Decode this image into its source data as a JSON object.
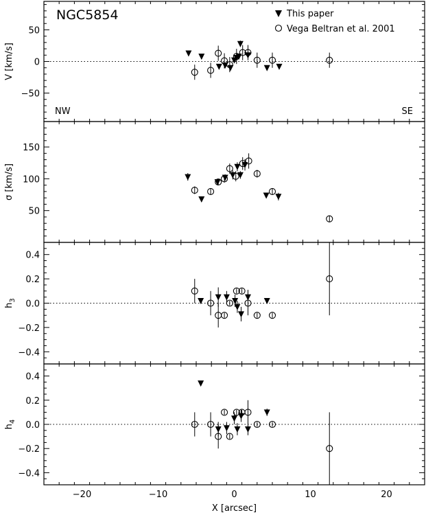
{
  "chart_data": {
    "type": "scatter",
    "title": "NGC5854",
    "xlabel": "X [arcsec]",
    "xlim": [
      -25,
      25
    ],
    "xticks": [
      -20,
      -10,
      0,
      10,
      20
    ],
    "legend": {
      "placement": "top-right",
      "entries": [
        {
          "label": "This paper",
          "marker": "filled-triangle-down"
        },
        {
          "label": "Vega Beltran et al. 2001",
          "marker": "open-circle"
        }
      ]
    },
    "annotations": {
      "left": "NW",
      "right": "SE"
    },
    "panels": [
      {
        "id": "v",
        "ylabel": "V [km/s]",
        "ylim": [
          -95,
          95
        ],
        "yticks": [
          50,
          0,
          -50
        ],
        "series": [
          {
            "name": "This paper",
            "points": [
              {
                "x": -6.0,
                "y": 13,
                "err": 4
              },
              {
                "x": -4.3,
                "y": 8,
                "err": 3
              },
              {
                "x": -2.0,
                "y": -8,
                "err": 4
              },
              {
                "x": -1.2,
                "y": -6,
                "err": 3
              },
              {
                "x": -0.5,
                "y": -10,
                "err": 4
              },
              {
                "x": 0.0,
                "y": 2,
                "err": 4
              },
              {
                "x": 0.3,
                "y": 6,
                "err": 4
              },
              {
                "x": 0.6,
                "y": 8,
                "err": 4
              },
              {
                "x": 0.8,
                "y": 28,
                "err": 5
              },
              {
                "x": 1.8,
                "y": 10,
                "err": 5
              },
              {
                "x": 4.3,
                "y": -10,
                "err": 3
              },
              {
                "x": 5.9,
                "y": -8,
                "err": 3
              }
            ]
          },
          {
            "name": "Vega Beltran et al. 2001",
            "points": [
              {
                "x": -5.2,
                "y": -17,
                "err": 12
              },
              {
                "x": -3.1,
                "y": -14,
                "err": 12
              },
              {
                "x": -2.1,
                "y": 13,
                "err": 12
              },
              {
                "x": -1.3,
                "y": 1,
                "err": 12
              },
              {
                "x": -0.6,
                "y": -5,
                "err": 12
              },
              {
                "x": 0.3,
                "y": 8,
                "err": 12
              },
              {
                "x": 1.1,
                "y": 14,
                "err": 12
              },
              {
                "x": 1.8,
                "y": 14,
                "err": 12
              },
              {
                "x": 3.0,
                "y": 2,
                "err": 12
              },
              {
                "x": 5.0,
                "y": 2,
                "err": 12
              },
              {
                "x": 12.5,
                "y": 2,
                "err": 12
              }
            ]
          }
        ]
      },
      {
        "id": "sigma",
        "ylabel": "σ [km/s]",
        "ylim": [
          0,
          190
        ],
        "yticks": [
          150,
          100,
          50
        ],
        "series": [
          {
            "name": "This paper",
            "points": [
              {
                "x": -6.1,
                "y": 103,
                "err": 6
              },
              {
                "x": -4.3,
                "y": 68,
                "err": 4
              },
              {
                "x": -2.2,
                "y": 95,
                "err": 5
              },
              {
                "x": -1.2,
                "y": 102,
                "err": 5
              },
              {
                "x": -0.2,
                "y": 106,
                "err": 7
              },
              {
                "x": 0.4,
                "y": 119,
                "err": 7
              },
              {
                "x": 0.8,
                "y": 106,
                "err": 6
              },
              {
                "x": 1.4,
                "y": 122,
                "err": 9
              },
              {
                "x": 4.2,
                "y": 74,
                "err": 4
              },
              {
                "x": 5.8,
                "y": 72,
                "err": 6
              }
            ]
          },
          {
            "name": "Vega Beltran et al. 2001",
            "points": [
              {
                "x": -5.2,
                "y": 82,
                "err": 6
              },
              {
                "x": -3.1,
                "y": 80,
                "err": 5
              },
              {
                "x": -2.1,
                "y": 95,
                "err": 5
              },
              {
                "x": -1.3,
                "y": 100,
                "err": 6
              },
              {
                "x": -0.6,
                "y": 116,
                "err": 8
              },
              {
                "x": 0.2,
                "y": 104,
                "err": 8
              },
              {
                "x": 1.1,
                "y": 124,
                "err": 10
              },
              {
                "x": 1.9,
                "y": 128,
                "err": 12
              },
              {
                "x": 3.0,
                "y": 108,
                "err": 6
              },
              {
                "x": 5.0,
                "y": 80,
                "err": 5
              },
              {
                "x": 12.5,
                "y": 37,
                "err": 5
              }
            ]
          }
        ]
      },
      {
        "id": "h3",
        "ylabel": "h3",
        "ylim": [
          -0.5,
          0.5
        ],
        "yticks": [
          0.4,
          0.2,
          0.0,
          -0.2,
          -0.4
        ],
        "series": [
          {
            "name": "This paper",
            "points": [
              {
                "x": -4.4,
                "y": 0.02,
                "err": 0.02
              },
              {
                "x": -2.1,
                "y": 0.05,
                "err": 0.08
              },
              {
                "x": -1.0,
                "y": 0.05,
                "err": 0.05
              },
              {
                "x": 0.1,
                "y": 0.02,
                "err": 0.05
              },
              {
                "x": 0.4,
                "y": -0.03,
                "err": 0.05
              },
              {
                "x": 0.9,
                "y": -0.09,
                "err": 0.06
              },
              {
                "x": 1.8,
                "y": 0.05,
                "err": 0.06
              },
              {
                "x": 4.3,
                "y": 0.02,
                "err": 0.02
              }
            ]
          },
          {
            "name": "Vega Beltran et al. 2001",
            "points": [
              {
                "x": -5.2,
                "y": 0.1,
                "err": 0.1
              },
              {
                "x": -3.1,
                "y": 0.0,
                "err": 0.1
              },
              {
                "x": -2.1,
                "y": -0.1,
                "err": 0.1
              },
              {
                "x": -1.3,
                "y": -0.1,
                "err": 0.02
              },
              {
                "x": -0.6,
                "y": 0.0,
                "err": 0.02
              },
              {
                "x": 0.3,
                "y": 0.1,
                "err": 0.02
              },
              {
                "x": 1.0,
                "y": 0.1,
                "err": 0.02
              },
              {
                "x": 1.8,
                "y": 0.0,
                "err": 0.1
              },
              {
                "x": 3.0,
                "y": -0.1,
                "err": 0.02
              },
              {
                "x": 5.0,
                "y": -0.1,
                "err": 0.02
              },
              {
                "x": 12.5,
                "y": 0.2,
                "err": 0.3
              }
            ]
          }
        ]
      },
      {
        "id": "h4",
        "ylabel": "h4",
        "ylim": [
          -0.5,
          0.5
        ],
        "yticks": [
          0.4,
          0.2,
          0.0,
          -0.2,
          -0.4
        ],
        "series": [
          {
            "name": "This paper",
            "points": [
              {
                "x": -4.4,
                "y": 0.34,
                "err": 0.02
              },
              {
                "x": -2.1,
                "y": -0.04,
                "err": 0.06
              },
              {
                "x": -1.0,
                "y": -0.03,
                "err": 0.05
              },
              {
                "x": 0.0,
                "y": 0.05,
                "err": 0.05
              },
              {
                "x": 0.4,
                "y": -0.04,
                "err": 0.05
              },
              {
                "x": 0.9,
                "y": 0.07,
                "err": 0.05
              },
              {
                "x": 1.8,
                "y": -0.04,
                "err": 0.05
              },
              {
                "x": 4.3,
                "y": 0.1,
                "err": 0.03
              }
            ]
          },
          {
            "name": "Vega Beltran et al. 2001",
            "points": [
              {
                "x": -5.2,
                "y": 0.0,
                "err": 0.1
              },
              {
                "x": -3.1,
                "y": 0.0,
                "err": 0.1
              },
              {
                "x": -2.1,
                "y": -0.1,
                "err": 0.1
              },
              {
                "x": -1.3,
                "y": 0.1,
                "err": 0.02
              },
              {
                "x": -0.6,
                "y": -0.1,
                "err": 0.02
              },
              {
                "x": 0.3,
                "y": 0.1,
                "err": 0.02
              },
              {
                "x": 1.0,
                "y": 0.1,
                "err": 0.02
              },
              {
                "x": 1.8,
                "y": 0.1,
                "err": 0.1
              },
              {
                "x": 3.0,
                "y": 0.0,
                "err": 0.02
              },
              {
                "x": 5.0,
                "y": 0.0,
                "err": 0.02
              },
              {
                "x": 12.5,
                "y": -0.2,
                "err": 0.3
              }
            ]
          }
        ]
      }
    ]
  }
}
